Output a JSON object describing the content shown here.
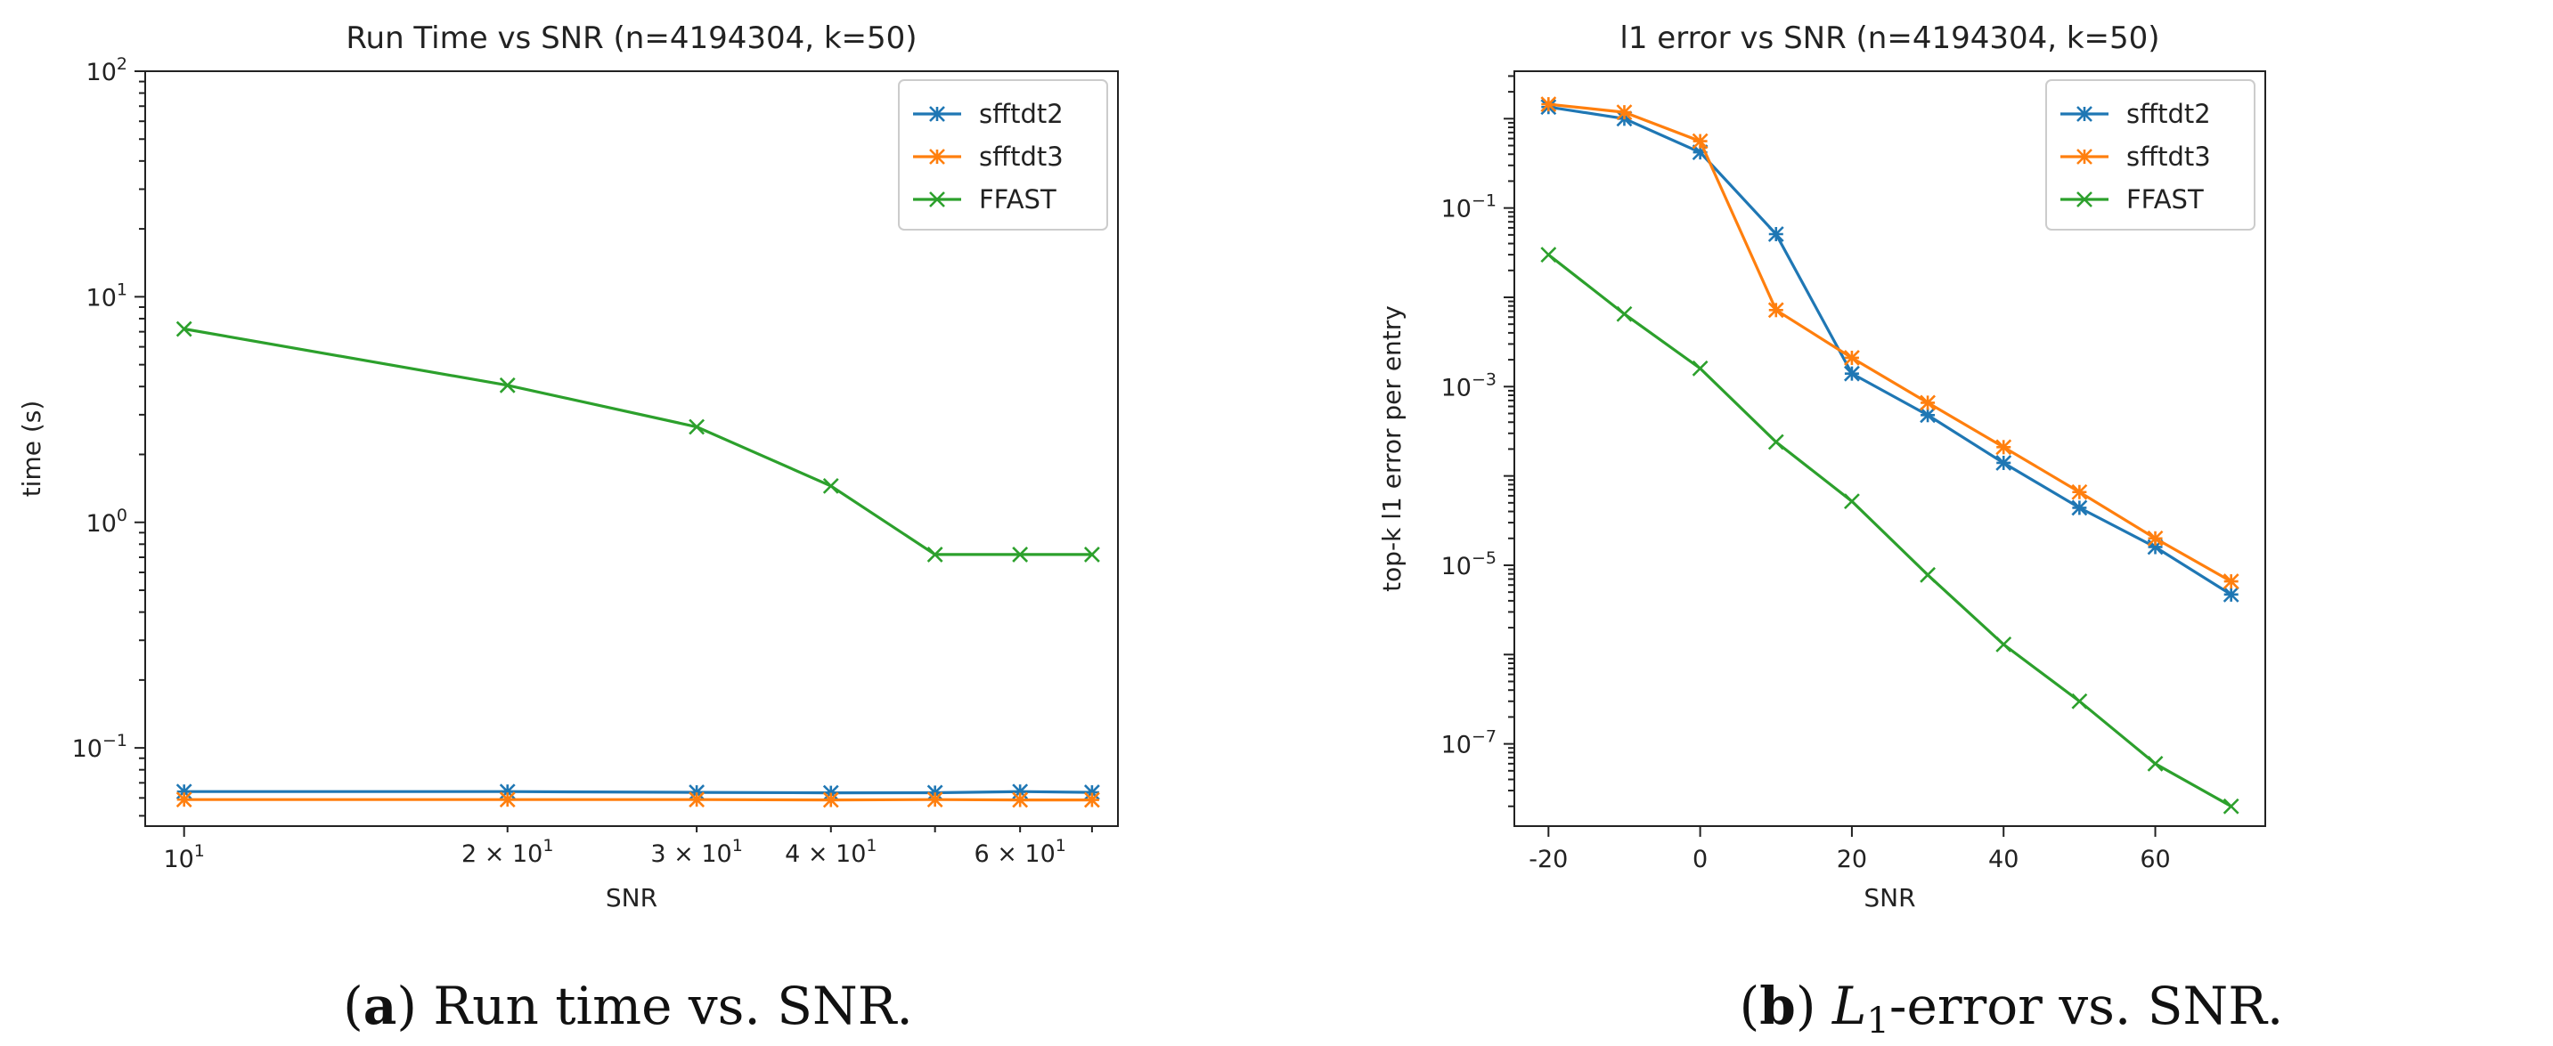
{
  "colors": {
    "sfftdt2": "#1f77b4",
    "sfftdt3": "#ff7f0e",
    "FFAST": "#2ca02c"
  },
  "captions": {
    "a_letter": "a",
    "a_text": " Run time vs. SNR.",
    "b_letter": "b",
    "b_L": "L",
    "b_sub": "1",
    "b_text": "-error vs. SNR."
  },
  "chart_data": [
    {
      "type": "line",
      "title": "Run Time vs SNR (n=4194304, k=50)",
      "xlabel": "SNR",
      "ylabel": "time (s)",
      "xscale": "log",
      "yscale": "log",
      "xlim": [
        9.2,
        74
      ],
      "ylim": [
        0.045,
        100
      ],
      "xticks_major": [
        {
          "value": 10,
          "label": "10",
          "exp": "1"
        }
      ],
      "xticks_minor": [
        {
          "value": 20,
          "label": "2 × 10",
          "exp": "1"
        },
        {
          "value": 30,
          "label": "3 × 10",
          "exp": "1"
        },
        {
          "value": 40,
          "label": "4 × 10",
          "exp": "1"
        },
        {
          "value": 60,
          "label": "6 × 10",
          "exp": "1"
        }
      ],
      "yticks": [
        {
          "value": 0.1,
          "label": "10",
          "exp": "−1"
        },
        {
          "value": 1,
          "label": "10",
          "exp": "0"
        },
        {
          "value": 10,
          "label": "10",
          "exp": "1"
        },
        {
          "value": 100,
          "label": "10",
          "exp": "2"
        }
      ],
      "x": [
        10,
        20,
        30,
        40,
        50,
        60,
        70
      ],
      "series": [
        {
          "name": "sfftdt2",
          "marker": "star",
          "values": [
            0.064,
            0.064,
            0.0635,
            0.0632,
            0.0633,
            0.064,
            0.0635
          ]
        },
        {
          "name": "sfftdt3",
          "marker": "star",
          "values": [
            0.059,
            0.059,
            0.059,
            0.0588,
            0.059,
            0.0588,
            0.0588
          ]
        },
        {
          "name": "FFAST",
          "marker": "x",
          "values": [
            7.2,
            4.05,
            2.65,
            1.45,
            0.72,
            0.72,
            0.72
          ]
        }
      ],
      "legend": "top-right"
    },
    {
      "type": "line",
      "title": "l1 error vs SNR (n=4194304, k=50)",
      "xlabel": "SNR",
      "ylabel": "top-k l1 error per entry",
      "xscale": "linear",
      "yscale": "log",
      "xlim": [
        -24.5,
        74.5
      ],
      "ylim": [
        1.2e-08,
        3.4
      ],
      "xticks": [
        {
          "value": -20,
          "label": "-20"
        },
        {
          "value": 0,
          "label": "0"
        },
        {
          "value": 20,
          "label": "20"
        },
        {
          "value": 40,
          "label": "40"
        },
        {
          "value": 60,
          "label": "60"
        }
      ],
      "yticks": [
        {
          "value": 0.1,
          "label": "10",
          "exp": "−1"
        },
        {
          "value": 0.001,
          "label": "10",
          "exp": "−3"
        },
        {
          "value": 1e-05,
          "label": "10",
          "exp": "−5"
        },
        {
          "value": 1e-07,
          "label": "10",
          "exp": "−7"
        }
      ],
      "x": [
        -20,
        -10,
        0,
        10,
        20,
        30,
        40,
        50,
        60,
        70
      ],
      "series": [
        {
          "name": "sfftdt2",
          "marker": "star",
          "values": [
            1.35,
            1.0,
            0.42,
            0.051,
            0.0014,
            0.00048,
            0.00014,
            4.4e-05,
            1.6e-05,
            4.7e-06
          ]
        },
        {
          "name": "sfftdt3",
          "marker": "star",
          "values": [
            1.45,
            1.18,
            0.56,
            0.0072,
            0.0021,
            0.00066,
            0.00021,
            6.6e-05,
            2e-05,
            6.6e-06
          ]
        },
        {
          "name": "FFAST",
          "marker": "x",
          "values": [
            0.03,
            0.0065,
            0.0016,
            0.00024,
            5.2e-05,
            7.8e-06,
            1.3e-06,
            3e-07,
            6e-08,
            2e-08
          ]
        }
      ],
      "legend": "top-right"
    }
  ]
}
